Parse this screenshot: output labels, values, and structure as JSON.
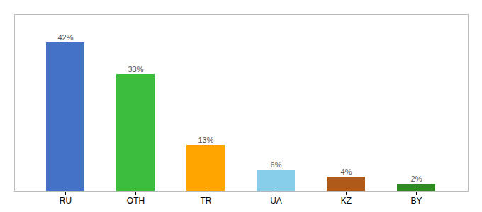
{
  "chart_data": {
    "type": "bar",
    "categories": [
      "RU",
      "OTH",
      "TR",
      "UA",
      "KZ",
      "BY"
    ],
    "values": [
      42,
      33,
      13,
      6,
      4,
      2
    ],
    "value_labels": [
      "42%",
      "33%",
      "13%",
      "6%",
      "4%",
      "2%"
    ],
    "colors": [
      "#4472C4",
      "#3DBD3D",
      "#FFA500",
      "#87CEEB",
      "#B05A1A",
      "#2E8B22"
    ],
    "ylim": [
      0,
      50
    ],
    "data_labels": true,
    "tick_labels": "x"
  }
}
